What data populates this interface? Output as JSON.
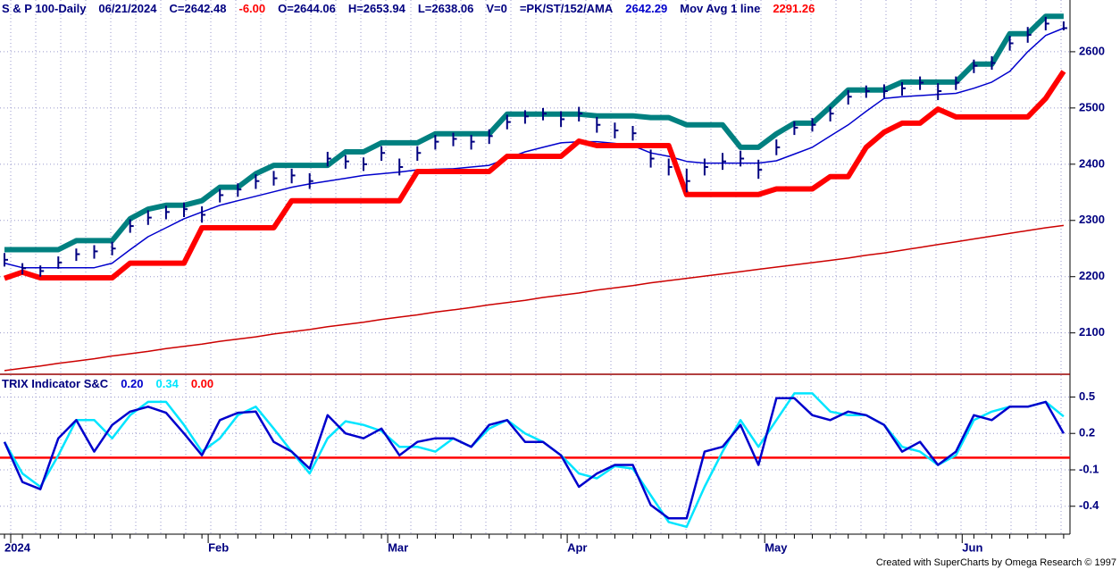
{
  "chart_data": [
    {
      "type": "ohlc",
      "title_items": [
        {
          "text": "S & P 100-Daily",
          "color": "#000080"
        },
        {
          "text": "06/21/2024",
          "color": "#000080"
        },
        {
          "text": "C=2642.48",
          "color": "#000080"
        },
        {
          "text": "-6.00",
          "color": "#ff0000"
        },
        {
          "text": "O=2644.06",
          "color": "#000080"
        },
        {
          "text": "H=2653.94",
          "color": "#000080"
        },
        {
          "text": "L=2638.06",
          "color": "#000080"
        },
        {
          "text": "V=0",
          "color": "#000080"
        },
        {
          "text": "=PK/ST/152/AMA",
          "color": "#000080"
        },
        {
          "text": "2642.29",
          "color": "#0000cc"
        },
        {
          "text": "Mov Avg 1 line",
          "color": "#000080"
        },
        {
          "text": "2291.26",
          "color": "#ff0000"
        }
      ],
      "bar_color": "#000080",
      "high": [
        2242,
        2224,
        2220,
        2236,
        2250,
        2256,
        2262,
        2302,
        2318,
        2326,
        2332,
        2325,
        2356,
        2366,
        2382,
        2388,
        2392,
        2384,
        2422,
        2416,
        2412,
        2432,
        2410,
        2432,
        2452,
        2456,
        2452,
        2462,
        2488,
        2496,
        2500,
        2494,
        2502,
        2484,
        2474,
        2468,
        2426,
        2410,
        2392,
        2410,
        2420,
        2424,
        2408,
        2444,
        2476,
        2482,
        2502,
        2532,
        2540,
        2542,
        2546,
        2556,
        2544,
        2556,
        2586,
        2592,
        2628,
        2644,
        2662,
        2654
      ],
      "low": [
        2218,
        2204,
        2200,
        2214,
        2228,
        2232,
        2238,
        2278,
        2292,
        2302,
        2306,
        2296,
        2332,
        2342,
        2356,
        2362,
        2366,
        2356,
        2396,
        2392,
        2388,
        2406,
        2380,
        2406,
        2426,
        2432,
        2426,
        2436,
        2462,
        2472,
        2478,
        2466,
        2476,
        2456,
        2446,
        2442,
        2394,
        2380,
        2350,
        2380,
        2390,
        2396,
        2374,
        2416,
        2452,
        2458,
        2476,
        2506,
        2518,
        2518,
        2522,
        2532,
        2514,
        2532,
        2562,
        2568,
        2602,
        2616,
        2638,
        2638
      ],
      "close": [
        2230,
        2215,
        2210,
        2225,
        2240,
        2245,
        2250,
        2290,
        2305,
        2315,
        2320,
        2310,
        2345,
        2355,
        2370,
        2375,
        2380,
        2370,
        2410,
        2405,
        2400,
        2420,
        2395,
        2420,
        2440,
        2445,
        2440,
        2450,
        2475,
        2485,
        2490,
        2480,
        2490,
        2470,
        2460,
        2455,
        2410,
        2395,
        2370,
        2395,
        2405,
        2410,
        2390,
        2430,
        2465,
        2470,
        2490,
        2520,
        2530,
        2530,
        2535,
        2545,
        2530,
        2545,
        2575,
        2580,
        2615,
        2630,
        2650,
        2642
      ],
      "series": [
        {
          "color": "#cc0000",
          "style": "thin",
          "values": [
            2033,
            2037,
            2041,
            2046,
            2050,
            2054,
            2059,
            2063,
            2067,
            2072,
            2076,
            2080,
            2085,
            2089,
            2093,
            2098,
            2102,
            2106,
            2111,
            2115,
            2119,
            2124,
            2128,
            2132,
            2137,
            2141,
            2145,
            2150,
            2154,
            2158,
            2163,
            2167,
            2171,
            2176,
            2180,
            2184,
            2189,
            2193,
            2197,
            2201,
            2205,
            2209,
            2213,
            2217,
            2221,
            2225,
            2229,
            2233,
            2238,
            2242,
            2247,
            2252,
            2257,
            2262,
            2267,
            2272,
            2277,
            2282,
            2287,
            2291
          ]
        },
        {
          "color": "#0000cc",
          "style": "thin",
          "values": [
            2224,
            2216,
            2216,
            2216,
            2216,
            2216,
            2224,
            2248,
            2271,
            2287,
            2303,
            2315,
            2327,
            2335,
            2343,
            2351,
            2359,
            2365,
            2370,
            2375,
            2380,
            2383,
            2386,
            2390,
            2391,
            2392,
            2395,
            2398,
            2410,
            2422,
            2430,
            2438,
            2440,
            2440,
            2437,
            2433,
            2420,
            2414,
            2405,
            2402,
            2402,
            2402,
            2402,
            2406,
            2418,
            2430,
            2450,
            2470,
            2494,
            2517,
            2520,
            2522,
            2524,
            2526,
            2535,
            2546,
            2565,
            2600,
            2629,
            2642
          ]
        },
        {
          "color": "#ff0000",
          "style": "thick",
          "values": [
            2197,
            2208,
            2198,
            2198,
            2198,
            2198,
            2198,
            2224,
            2224,
            2224,
            2224,
            2287,
            2287,
            2287,
            2287,
            2287,
            2335,
            2335,
            2335,
            2335,
            2335,
            2335,
            2335,
            2387,
            2387,
            2387,
            2387,
            2387,
            2414,
            2414,
            2414,
            2414,
            2441,
            2433,
            2433,
            2433,
            2433,
            2433,
            2346,
            2346,
            2346,
            2346,
            2346,
            2356,
            2356,
            2356,
            2378,
            2378,
            2430,
            2457,
            2473,
            2473,
            2498,
            2484,
            2484,
            2484,
            2484,
            2484,
            2517,
            2565
          ]
        },
        {
          "color": "#008080",
          "style": "thick",
          "values": [
            2248,
            2248,
            2248,
            2248,
            2264,
            2264,
            2264,
            2303,
            2320,
            2327,
            2327,
            2335,
            2359,
            2359,
            2383,
            2398,
            2398,
            2398,
            2398,
            2422,
            2422,
            2438,
            2438,
            2438,
            2454,
            2454,
            2454,
            2454,
            2489,
            2489,
            2489,
            2489,
            2489,
            2486,
            2486,
            2486,
            2483,
            2483,
            2470,
            2470,
            2470,
            2430,
            2430,
            2454,
            2473,
            2473,
            2502,
            2532,
            2532,
            2532,
            2546,
            2546,
            2546,
            2546,
            2578,
            2578,
            2632,
            2632,
            2663,
            2663
          ]
        }
      ],
      "ylim": [
        2028,
        2692
      ],
      "yticks": [
        2100,
        2200,
        2300,
        2400,
        2500,
        2600
      ],
      "grid": true
    },
    {
      "type": "line",
      "title_items": [
        {
          "text": "TRIX Indicator S&C",
          "color": "#000080"
        },
        {
          "text": "0.20",
          "color": "#0000cc"
        },
        {
          "text": "0.34",
          "color": "#00e5ff"
        },
        {
          "text": "0.00",
          "color": "#ff0000"
        }
      ],
      "categories": [
        "2024",
        null,
        null,
        null,
        null,
        null,
        null,
        null,
        null,
        null,
        null,
        "Feb",
        null,
        null,
        null,
        null,
        null,
        null,
        null,
        null,
        null,
        "Mar",
        null,
        null,
        null,
        null,
        null,
        null,
        null,
        null,
        null,
        "Apr",
        null,
        null,
        null,
        null,
        null,
        null,
        null,
        null,
        null,
        null,
        "May",
        null,
        null,
        null,
        null,
        null,
        null,
        null,
        null,
        null,
        null,
        "Jun",
        null,
        null,
        null,
        null,
        null,
        null
      ],
      "series": [
        {
          "color": "#00e5ff",
          "values": [
            0.13,
            -0.13,
            -0.24,
            0.02,
            0.31,
            0.31,
            0.16,
            0.35,
            0.46,
            0.46,
            0.27,
            0.05,
            0.16,
            0.35,
            0.42,
            0.24,
            0.05,
            -0.13,
            0.16,
            0.3,
            0.27,
            0.22,
            0.09,
            0.09,
            0.05,
            0.16,
            0.09,
            0.24,
            0.31,
            0.2,
            0.13,
            0.02,
            -0.13,
            -0.17,
            -0.07,
            -0.09,
            -0.31,
            -0.53,
            -0.57,
            -0.24,
            0.05,
            0.31,
            0.09,
            0.31,
            0.53,
            0.53,
            0.38,
            0.35,
            0.35,
            0.27,
            0.09,
            0.05,
            -0.06,
            0.02,
            0.31,
            0.38,
            0.42,
            0.42,
            0.46,
            0.34
          ]
        },
        {
          "color": "#0000cc",
          "values": [
            0.13,
            -0.2,
            -0.26,
            0.16,
            0.31,
            0.05,
            0.27,
            0.38,
            0.42,
            0.37,
            0.2,
            0.02,
            0.31,
            0.37,
            0.38,
            0.13,
            0.05,
            -0.09,
            0.35,
            0.2,
            0.16,
            0.24,
            0.02,
            0.13,
            0.16,
            0.16,
            0.09,
            0.27,
            0.31,
            0.13,
            0.13,
            0.02,
            -0.24,
            -0.13,
            -0.06,
            -0.06,
            -0.39,
            -0.5,
            -0.5,
            0.05,
            0.09,
            0.27,
            -0.06,
            0.49,
            0.49,
            0.35,
            0.31,
            0.38,
            0.35,
            0.27,
            0.05,
            0.13,
            -0.06,
            0.05,
            0.35,
            0.31,
            0.42,
            0.42,
            0.46,
            0.2
          ]
        }
      ],
      "reference_line": {
        "value": 0,
        "color": "#ff0000"
      },
      "ylim": [
        -0.63,
        0.68
      ],
      "yticks": [
        0.5,
        0.2,
        -0.1,
        -0.4
      ],
      "grid": true
    }
  ],
  "credit": "Created with SuperCharts by Omega Research © 1997"
}
